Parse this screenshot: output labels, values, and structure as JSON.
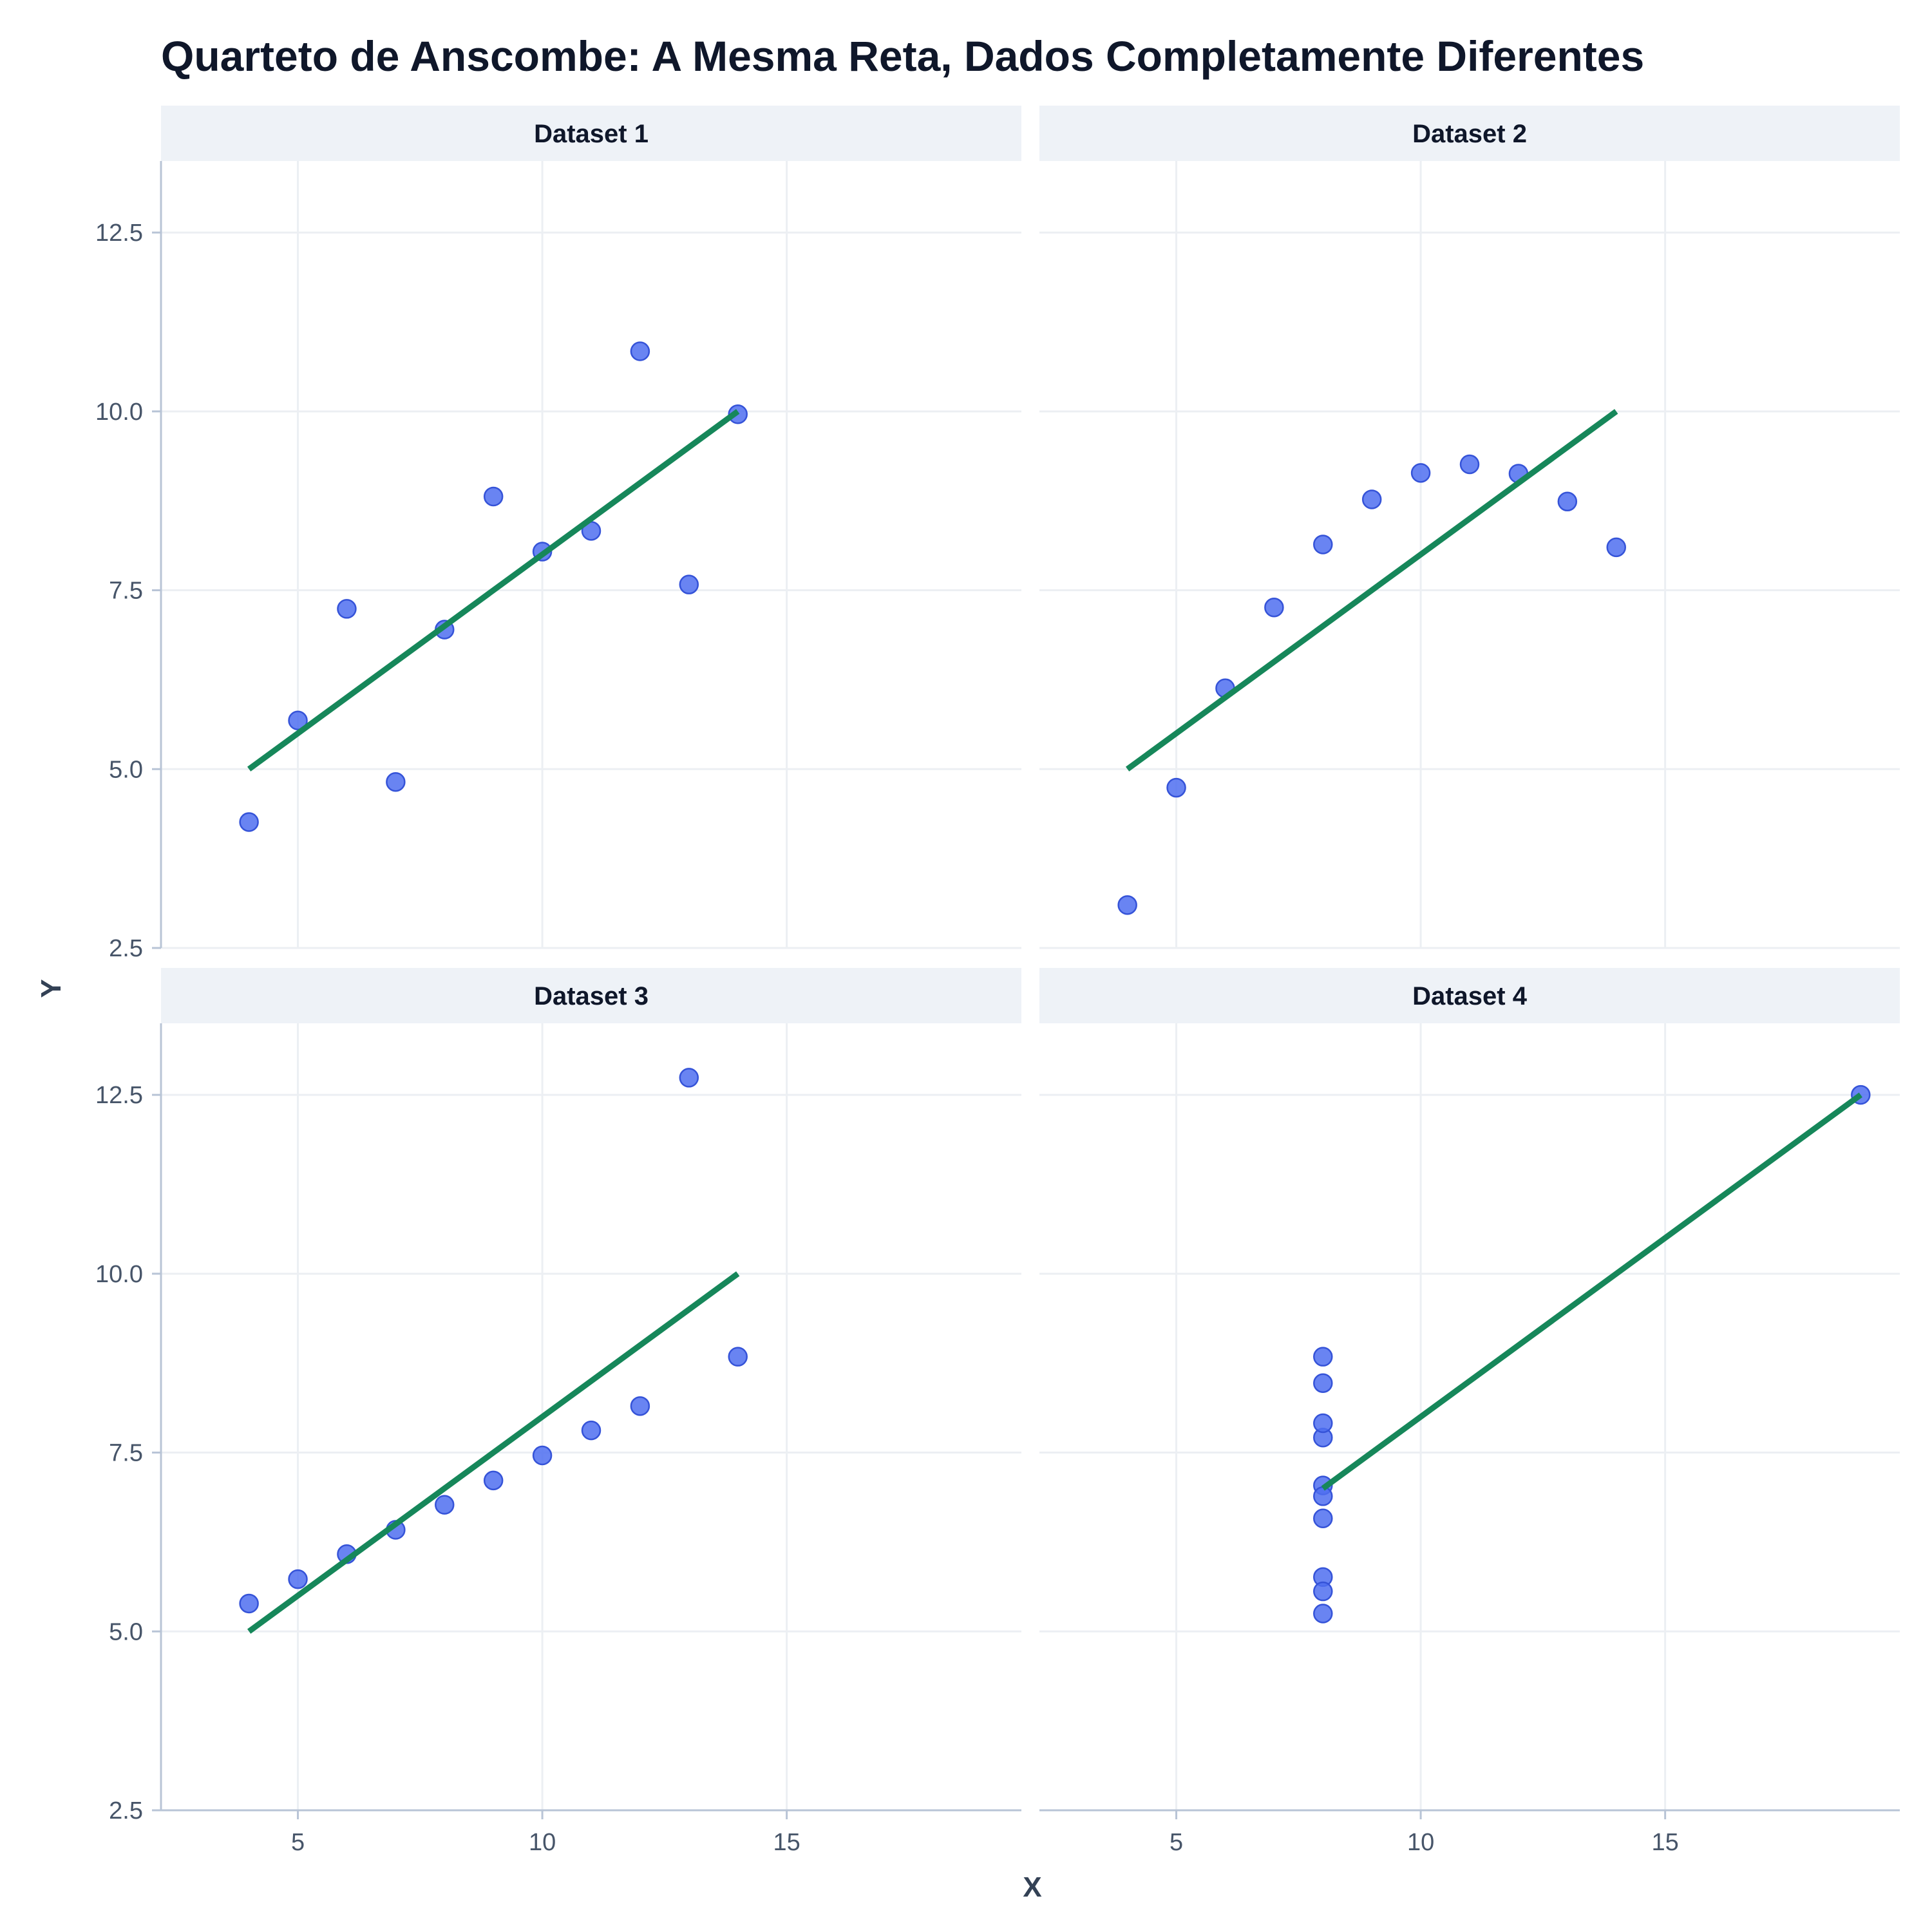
{
  "title": "Quarteto de Anscombe: A Mesma Reta, Dados Completamente Diferentes",
  "colors": {
    "points": "#4f6ef0",
    "points_edge": "#3553d8",
    "fit_line": "#16875a",
    "strip_bg": "#eef2f7",
    "grid": "#eceff3",
    "axis": "#b8c4d6"
  },
  "chart_data": {
    "type": "scatter",
    "title": "Quarteto de Anscombe: A Mesma Reta, Dados Completamente Diferentes",
    "xlabel": "X",
    "ylabel": "Y",
    "xlim": [
      2.2,
      19.8
    ],
    "ylim": [
      2.5,
      13.5
    ],
    "xticks": [
      5,
      10,
      15
    ],
    "yticks": [
      2.5,
      5.0,
      7.5,
      10.0,
      12.5
    ],
    "xtick_labels": [
      "5",
      "10",
      "15"
    ],
    "ytick_labels": [
      "2.5",
      "5.0",
      "7.5",
      "10.0",
      "12.5"
    ],
    "grid": true,
    "fit": {
      "intercept": 3.0,
      "slope": 0.5
    },
    "panels": [
      {
        "name": "Dataset 1",
        "fit_range": [
          4,
          14
        ],
        "points": [
          [
            10,
            8.04
          ],
          [
            8,
            6.95
          ],
          [
            13,
            7.58
          ],
          [
            9,
            8.81
          ],
          [
            11,
            8.33
          ],
          [
            14,
            9.96
          ],
          [
            6,
            7.24
          ],
          [
            4,
            4.26
          ],
          [
            12,
            10.84
          ],
          [
            7,
            4.82
          ],
          [
            5,
            5.68
          ]
        ]
      },
      {
        "name": "Dataset 2",
        "fit_range": [
          4,
          14
        ],
        "points": [
          [
            10,
            9.14
          ],
          [
            8,
            8.14
          ],
          [
            13,
            8.74
          ],
          [
            9,
            8.77
          ],
          [
            11,
            9.26
          ],
          [
            14,
            8.1
          ],
          [
            6,
            6.13
          ],
          [
            4,
            3.1
          ],
          [
            12,
            9.13
          ],
          [
            7,
            7.26
          ],
          [
            5,
            4.74
          ]
        ]
      },
      {
        "name": "Dataset 3",
        "fit_range": [
          4,
          14
        ],
        "points": [
          [
            10,
            7.46
          ],
          [
            8,
            6.77
          ],
          [
            13,
            12.74
          ],
          [
            9,
            7.11
          ],
          [
            11,
            7.81
          ],
          [
            14,
            8.84
          ],
          [
            6,
            6.08
          ],
          [
            4,
            5.39
          ],
          [
            12,
            8.15
          ],
          [
            7,
            6.42
          ],
          [
            5,
            5.73
          ]
        ]
      },
      {
        "name": "Dataset 4",
        "fit_range": [
          8,
          19
        ],
        "points": [
          [
            8,
            6.58
          ],
          [
            8,
            5.76
          ],
          [
            8,
            7.71
          ],
          [
            8,
            8.84
          ],
          [
            8,
            8.47
          ],
          [
            8,
            7.04
          ],
          [
            8,
            5.25
          ],
          [
            19,
            12.5
          ],
          [
            8,
            5.56
          ],
          [
            8,
            7.91
          ],
          [
            8,
            6.89
          ]
        ]
      }
    ]
  }
}
